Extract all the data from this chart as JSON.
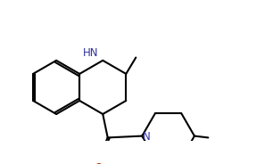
{
  "bg_color": "#ffffff",
  "line_color": "#000000",
  "nh_color": "#3030a0",
  "n_color": "#3030a0",
  "o_color": "#b04000",
  "line_width": 1.5,
  "font_size": 8.5
}
